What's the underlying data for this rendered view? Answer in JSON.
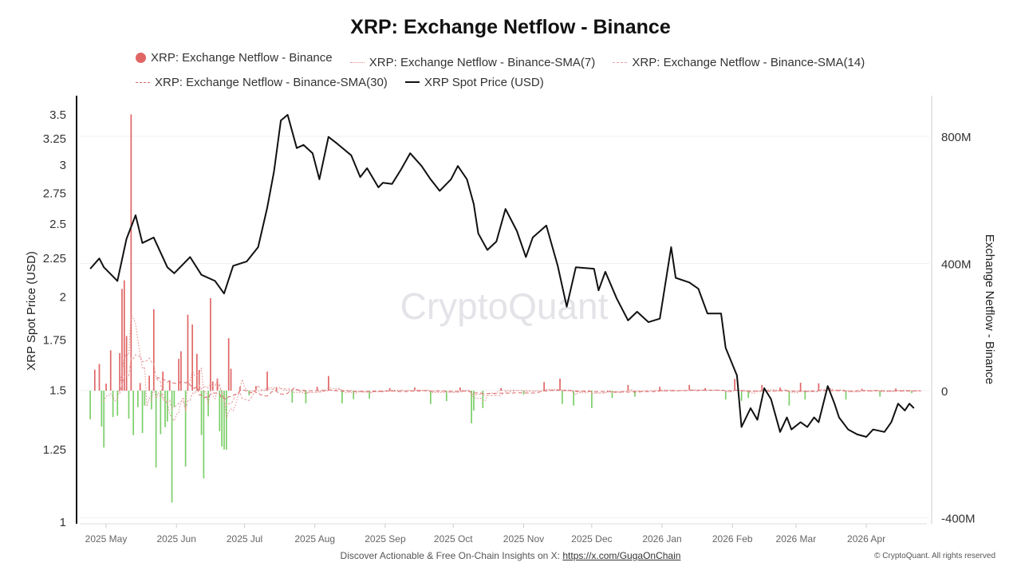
{
  "chart_data": {
    "type": "bar+line",
    "title": "XRP: Exchange Netflow - Binance",
    "legend": [
      "XRP: Exchange Netflow - Binance",
      "XRP: Exchange Netflow - Binance-SMA(7)",
      "XRP: Exchange Netflow - Binance-SMA(14)",
      "XRP: Exchange Netflow - Binance-SMA(30)",
      "XRP Spot Price (USD)"
    ],
    "legend_position": "top",
    "ylabel_left": "XRP Spot Price (USD)",
    "ylabel_right": "Exchange Netflow - Binance",
    "y_left_scale": "log",
    "y_left_ticks": [
      "3.5",
      "3.25",
      "3",
      "2.75",
      "2.5",
      "2.25",
      "2",
      "1.75",
      "1.5",
      "1.25",
      "1"
    ],
    "y_left_lim": [
      1,
      3.5
    ],
    "y_right_ticks": [
      "800M",
      "400M",
      "0",
      "-400M"
    ],
    "y_right_lim": [
      -400,
      800
    ],
    "y_right_unit": "M",
    "x_ticks": [
      "2025 May",
      "2025 Jun",
      "2025 Jul",
      "2025 Aug",
      "2025 Sep",
      "2025 Oct",
      "2025 Nov",
      "2025 Dec",
      "2026 Jan",
      "2026 Feb",
      "2026 Mar",
      "2026 Apr"
    ],
    "grid": "horizontal (right axis)",
    "colors": {
      "inflow": "#e06666",
      "outflow": "#7ccf6a",
      "price": "#111111",
      "sma7": "#e08a8a",
      "sma14": "#e8a0a0",
      "sma30": "#d96a6a"
    },
    "watermark": "CryptoQuant",
    "price": [
      [
        "2025-04-24",
        2.18
      ],
      [
        "2025-04-28",
        2.25
      ],
      [
        "2025-04-30",
        2.19
      ],
      [
        "2025-05-06",
        2.1
      ],
      [
        "2025-05-10",
        2.39
      ],
      [
        "2025-05-14",
        2.57
      ],
      [
        "2025-05-17",
        2.36
      ],
      [
        "2025-05-22",
        2.4
      ],
      [
        "2025-05-28",
        2.19
      ],
      [
        "2025-05-31",
        2.15
      ],
      [
        "2025-06-07",
        2.26
      ],
      [
        "2025-06-12",
        2.14
      ],
      [
        "2025-06-18",
        2.1
      ],
      [
        "2025-06-22",
        2.02
      ],
      [
        "2025-06-26",
        2.2
      ],
      [
        "2025-07-02",
        2.23
      ],
      [
        "2025-07-07",
        2.33
      ],
      [
        "2025-07-11",
        2.63
      ],
      [
        "2025-07-14",
        2.94
      ],
      [
        "2025-07-17",
        3.44
      ],
      [
        "2025-07-20",
        3.5
      ],
      [
        "2025-07-24",
        3.16
      ],
      [
        "2025-07-27",
        3.19
      ],
      [
        "2025-07-31",
        3.11
      ],
      [
        "2025-08-03",
        2.87
      ],
      [
        "2025-08-07",
        3.27
      ],
      [
        "2025-08-11",
        3.2
      ],
      [
        "2025-08-17",
        3.09
      ],
      [
        "2025-08-21",
        2.89
      ],
      [
        "2025-08-24",
        2.97
      ],
      [
        "2025-08-29",
        2.8
      ],
      [
        "2025-08-31",
        2.84
      ],
      [
        "2025-09-04",
        2.83
      ],
      [
        "2025-09-08",
        2.96
      ],
      [
        "2025-09-12",
        3.11
      ],
      [
        "2025-09-17",
        2.99
      ],
      [
        "2025-09-21",
        2.87
      ],
      [
        "2025-09-25",
        2.77
      ],
      [
        "2025-09-30",
        2.87
      ],
      [
        "2025-10-03",
        2.99
      ],
      [
        "2025-10-07",
        2.87
      ],
      [
        "2025-10-10",
        2.66
      ],
      [
        "2025-10-12",
        2.43
      ],
      [
        "2025-10-16",
        2.31
      ],
      [
        "2025-10-20",
        2.37
      ],
      [
        "2025-10-24",
        2.62
      ],
      [
        "2025-10-29",
        2.45
      ],
      [
        "2025-11-02",
        2.26
      ],
      [
        "2025-11-05",
        2.4
      ],
      [
        "2025-11-11",
        2.49
      ],
      [
        "2025-11-16",
        2.2
      ],
      [
        "2025-11-20",
        1.94
      ],
      [
        "2025-11-24",
        2.19
      ],
      [
        "2025-12-02",
        2.18
      ],
      [
        "2025-12-04",
        2.04
      ],
      [
        "2025-12-07",
        2.16
      ],
      [
        "2025-12-12",
        1.99
      ],
      [
        "2025-12-17",
        1.86
      ],
      [
        "2025-12-21",
        1.91
      ],
      [
        "2025-12-26",
        1.85
      ],
      [
        "2025-12-31",
        1.87
      ],
      [
        "2026-01-05",
        2.33
      ],
      [
        "2026-01-07",
        2.12
      ],
      [
        "2026-01-13",
        2.09
      ],
      [
        "2026-01-17",
        2.05
      ],
      [
        "2026-01-21",
        1.9
      ],
      [
        "2026-01-27",
        1.9
      ],
      [
        "2026-01-29",
        1.71
      ],
      [
        "2026-02-03",
        1.57
      ],
      [
        "2026-02-05",
        1.34
      ],
      [
        "2026-02-09",
        1.42
      ],
      [
        "2026-02-12",
        1.37
      ],
      [
        "2026-02-15",
        1.51
      ],
      [
        "2026-02-18",
        1.46
      ],
      [
        "2026-02-22",
        1.32
      ],
      [
        "2026-02-25",
        1.38
      ],
      [
        "2026-02-27",
        1.33
      ],
      [
        "2026-03-03",
        1.36
      ],
      [
        "2026-03-06",
        1.34
      ],
      [
        "2026-03-09",
        1.38
      ],
      [
        "2026-03-11",
        1.36
      ],
      [
        "2026-03-15",
        1.52
      ],
      [
        "2026-03-18",
        1.44
      ],
      [
        "2026-03-20",
        1.38
      ],
      [
        "2026-03-24",
        1.33
      ],
      [
        "2026-03-28",
        1.31
      ],
      [
        "2026-04-01",
        1.3
      ],
      [
        "2026-04-04",
        1.33
      ],
      [
        "2026-04-09",
        1.32
      ],
      [
        "2026-04-12",
        1.36
      ],
      [
        "2026-04-15",
        1.44
      ],
      [
        "2026-04-18",
        1.41
      ],
      [
        "2026-04-20",
        1.44
      ],
      [
        "2026-04-22",
        1.42
      ]
    ],
    "netflow_millions": [
      [
        "2025-04-24",
        -90
      ],
      [
        "2025-04-26",
        66
      ],
      [
        "2025-04-28",
        84
      ],
      [
        "2025-04-29",
        -113
      ],
      [
        "2025-04-30",
        -179
      ],
      [
        "2025-05-01",
        22
      ],
      [
        "2025-05-03",
        127
      ],
      [
        "2025-05-04",
        -83
      ],
      [
        "2025-05-06",
        -79
      ],
      [
        "2025-05-07",
        118
      ],
      [
        "2025-05-08",
        320
      ],
      [
        "2025-05-09",
        347
      ],
      [
        "2025-05-10",
        172
      ],
      [
        "2025-05-11",
        -88
      ],
      [
        "2025-05-12",
        869
      ],
      [
        "2025-05-13",
        -140
      ],
      [
        "2025-05-15",
        -52
      ],
      [
        "2025-05-16",
        24
      ],
      [
        "2025-05-17",
        -133
      ],
      [
        "2025-05-18",
        -47
      ],
      [
        "2025-05-20",
        47
      ],
      [
        "2025-05-21",
        -59
      ],
      [
        "2025-05-22",
        256
      ],
      [
        "2025-05-23",
        -242
      ],
      [
        "2025-05-25",
        -137
      ],
      [
        "2025-05-26",
        60
      ],
      [
        "2025-05-27",
        -115
      ],
      [
        "2025-05-28",
        -97
      ],
      [
        "2025-05-29",
        30
      ],
      [
        "2025-05-30",
        -352
      ],
      [
        "2025-05-31",
        -52
      ],
      [
        "2025-06-02",
        100
      ],
      [
        "2025-06-03",
        124
      ],
      [
        "2025-06-05",
        -239
      ],
      [
        "2025-06-06",
        239
      ],
      [
        "2025-06-08",
        208
      ],
      [
        "2025-06-10",
        116
      ],
      [
        "2025-06-11",
        65
      ],
      [
        "2025-06-12",
        -140
      ],
      [
        "2025-06-13",
        -276
      ],
      [
        "2025-06-15",
        -81
      ],
      [
        "2025-06-16",
        291
      ],
      [
        "2025-06-17",
        29
      ],
      [
        "2025-06-19",
        38
      ],
      [
        "2025-06-20",
        -128
      ],
      [
        "2025-06-21",
        -176
      ],
      [
        "2025-06-22",
        -185
      ],
      [
        "2025-06-23",
        -186
      ],
      [
        "2025-06-24",
        165
      ],
      [
        "2025-06-25",
        69
      ],
      [
        "2025-06-29",
        12
      ],
      [
        "2025-07-03",
        -15
      ],
      [
        "2025-07-06",
        14
      ],
      [
        "2025-07-11",
        60
      ],
      [
        "2025-07-15",
        10
      ],
      [
        "2025-07-22",
        -38
      ],
      [
        "2025-07-28",
        -40
      ],
      [
        "2025-08-02",
        12
      ],
      [
        "2025-08-07",
        46
      ],
      [
        "2025-08-13",
        -40
      ],
      [
        "2025-08-18",
        -27
      ],
      [
        "2025-08-25",
        -25
      ],
      [
        "2025-09-03",
        8
      ],
      [
        "2025-09-14",
        10
      ],
      [
        "2025-09-21",
        -42
      ],
      [
        "2025-09-28",
        -33
      ],
      [
        "2025-10-04",
        10
      ],
      [
        "2025-10-09",
        -103
      ],
      [
        "2025-10-10",
        -63
      ],
      [
        "2025-10-14",
        -55
      ],
      [
        "2025-10-22",
        8
      ],
      [
        "2025-11-01",
        -12
      ],
      [
        "2025-11-10",
        27
      ],
      [
        "2025-11-17",
        38
      ],
      [
        "2025-11-18",
        -42
      ],
      [
        "2025-11-23",
        -47
      ],
      [
        "2025-12-01",
        -55
      ],
      [
        "2025-12-10",
        -23
      ],
      [
        "2025-12-17",
        18
      ],
      [
        "2025-12-20",
        -19
      ],
      [
        "2025-12-31",
        12
      ],
      [
        "2026-01-13",
        18
      ],
      [
        "2026-01-20",
        8
      ],
      [
        "2026-01-29",
        -28
      ],
      [
        "2026-02-02",
        37
      ],
      [
        "2026-02-05",
        -32
      ],
      [
        "2026-02-08",
        -23
      ],
      [
        "2026-02-14",
        18
      ],
      [
        "2026-02-22",
        10
      ],
      [
        "2026-02-26",
        -47
      ],
      [
        "2026-03-03",
        25
      ],
      [
        "2026-03-05",
        -28
      ],
      [
        "2026-03-11",
        23
      ],
      [
        "2026-03-16",
        8
      ],
      [
        "2026-03-23",
        -28
      ],
      [
        "2026-03-30",
        6
      ],
      [
        "2026-04-07",
        -19
      ],
      [
        "2026-04-14",
        7
      ],
      [
        "2026-04-21",
        -8
      ]
    ]
  },
  "footer": {
    "text": "Discover Actionable & Free On-Chain Insights on X: ",
    "link": "https://x.com/GugaOnChain",
    "copyright": "© CryptoQuant. All rights reserved"
  }
}
